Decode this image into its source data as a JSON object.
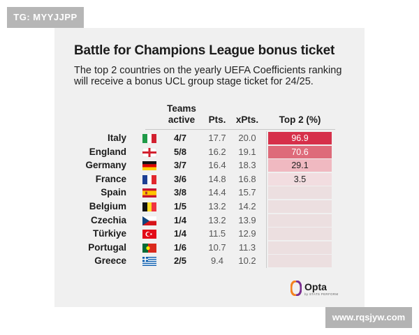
{
  "watermark_top": "TG: MYYJJPP",
  "watermark_bottom": "www.rqsjyw.com",
  "title": "Battle for Champions League bonus ticket",
  "subtitle_lines": [
    "The top 2 countries on the yearly UEFA Coefficients ranking",
    "will receive a bonus UCL group stage ticket for 24/25."
  ],
  "columns": {
    "active_l1": "Teams",
    "active_l2": "active",
    "pts": "Pts.",
    "xpts": "xPts.",
    "top2": "Top 2 (%)"
  },
  "rows": [
    {
      "country": "Italy",
      "flag": "italy-flag-icon",
      "active": "4/7",
      "pts": "17.7",
      "xpts": "20.0",
      "top2": "96.9",
      "top2_value": 96.9
    },
    {
      "country": "England",
      "flag": "england-flag-icon",
      "active": "5/8",
      "pts": "16.2",
      "xpts": "19.1",
      "top2": "70.6",
      "top2_value": 70.6
    },
    {
      "country": "Germany",
      "flag": "germany-flag-icon",
      "active": "3/7",
      "pts": "16.4",
      "xpts": "18.3",
      "top2": "29.1",
      "top2_value": 29.1
    },
    {
      "country": "France",
      "flag": "france-flag-icon",
      "active": "3/6",
      "pts": "14.8",
      "xpts": "16.8",
      "top2": "3.5",
      "top2_value": 3.5
    },
    {
      "country": "Spain",
      "flag": "spain-flag-icon",
      "active": "3/8",
      "pts": "14.4",
      "xpts": "15.7",
      "top2": "",
      "top2_value": 0
    },
    {
      "country": "Belgium",
      "flag": "belgium-flag-icon",
      "active": "1/5",
      "pts": "13.2",
      "xpts": "14.2",
      "top2": "",
      "top2_value": 0
    },
    {
      "country": "Czechia",
      "flag": "czechia-flag-icon",
      "active": "1/4",
      "pts": "13.2",
      "xpts": "13.9",
      "top2": "",
      "top2_value": 0
    },
    {
      "country": "Türkiye",
      "flag": "turkiye-flag-icon",
      "active": "1/4",
      "pts": "11.5",
      "xpts": "12.9",
      "top2": "",
      "top2_value": 0
    },
    {
      "country": "Portugal",
      "flag": "portugal-flag-icon",
      "active": "1/6",
      "pts": "10.7",
      "xpts": "11.3",
      "top2": "",
      "top2_value": 0
    },
    {
      "country": "Greece",
      "flag": "greece-flag-icon",
      "active": "2/5",
      "pts": "9.4",
      "xpts": "10.2",
      "top2": "",
      "top2_value": 0
    }
  ],
  "logo": {
    "word": "Opta",
    "tagline": "by STATS PERFORM",
    "icon": "opta-logo-icon"
  },
  "colors": {
    "bar_strong": "#d6304a",
    "bar_mid": "#de6b7a",
    "bar_light": "#f0b9c1",
    "bar_faint": "#f2dde0",
    "cell_bg": "#ecdfe0",
    "logo_orange": "#f4821f",
    "logo_purple": "#7a2f8f"
  }
}
